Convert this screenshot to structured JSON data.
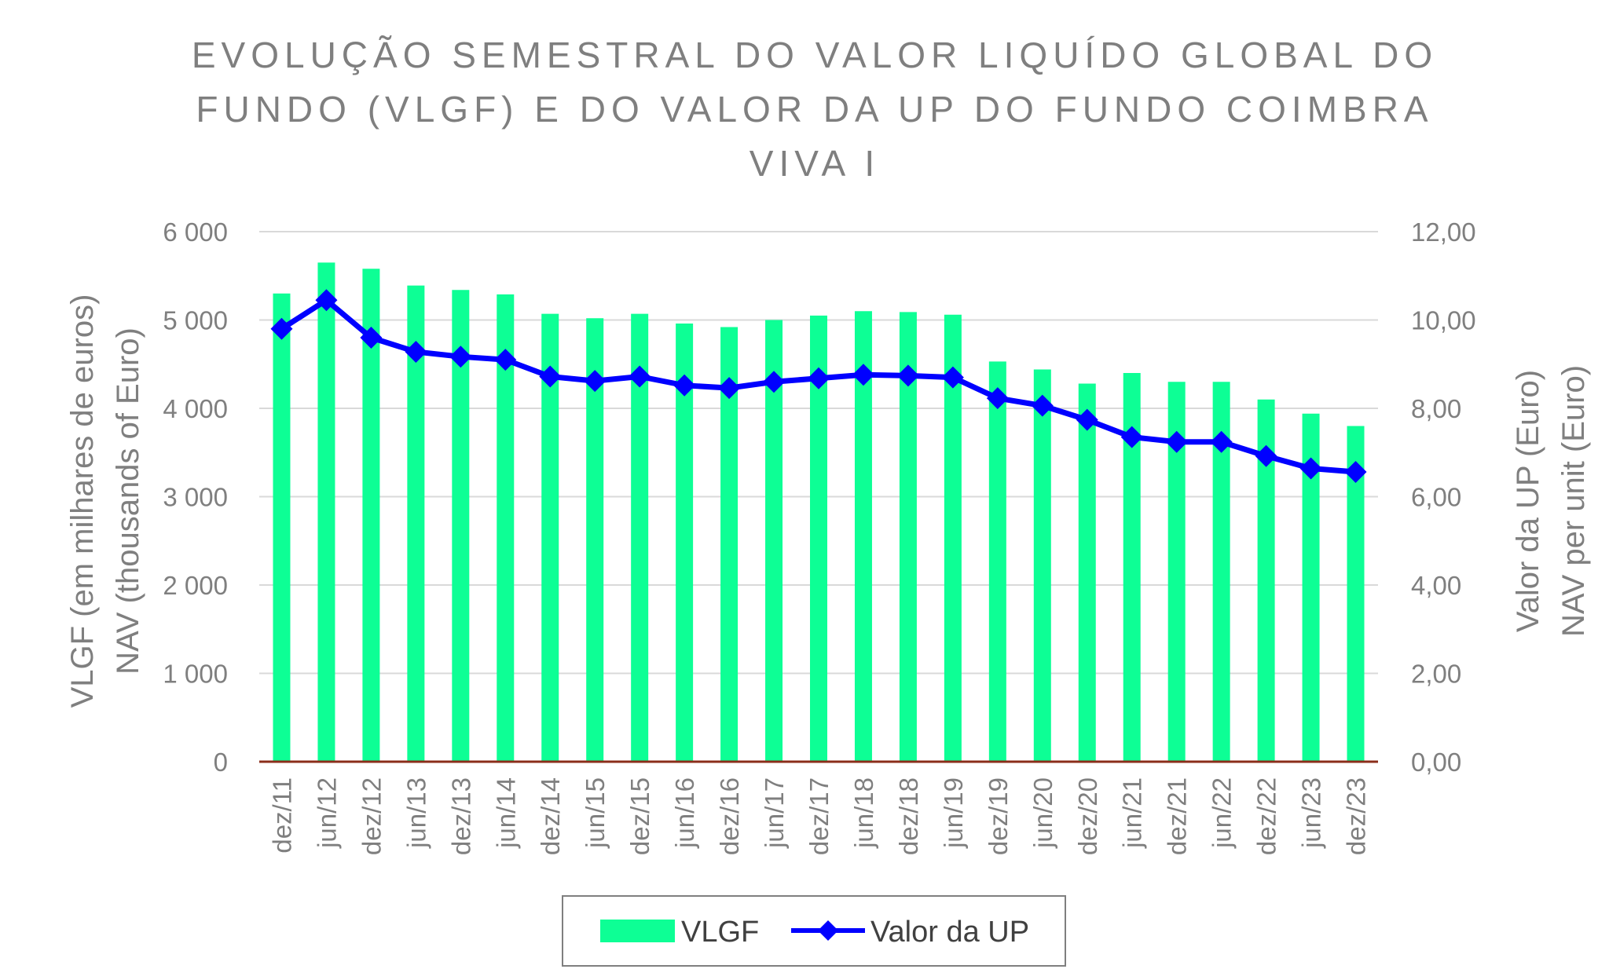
{
  "chart_data": {
    "type": "bar",
    "title_lines": [
      "EVOLUÇÃO SEMESTRAL DO VALOR LIQUÍDO GLOBAL DO",
      "FUNDO (VLGF) E DO VALOR DA UP DO FUNDO COIMBRA",
      "VIVA I"
    ],
    "categories": [
      "dez/11",
      "jun/12",
      "dez/12",
      "jun/13",
      "dez/13",
      "jun/14",
      "dez/14",
      "jun/15",
      "dez/15",
      "jun/16",
      "dez/16",
      "jun/17",
      "dez/17",
      "jun/18",
      "dez/18",
      "jun/19",
      "dez/19",
      "jun/20",
      "dez/20",
      "jun/21",
      "dez/21",
      "jun/22",
      "dez/22",
      "jun/23",
      "dez/23"
    ],
    "series": [
      {
        "name": "VLGF",
        "type": "bar",
        "axis": "left",
        "color": "#0dff95",
        "values": [
          5300,
          5650,
          5580,
          5390,
          5340,
          5290,
          5070,
          5020,
          5070,
          4960,
          4920,
          5000,
          5050,
          5100,
          5090,
          5060,
          4530,
          4440,
          4280,
          4400,
          4300,
          4300,
          4100,
          3940,
          3800
        ]
      },
      {
        "name": "Valor da UP",
        "type": "line",
        "axis": "right",
        "marker": "diamond",
        "color": "#0000ff",
        "values": [
          9.8,
          10.45,
          9.6,
          9.28,
          9.17,
          9.1,
          8.72,
          8.62,
          8.72,
          8.52,
          8.46,
          8.6,
          8.68,
          8.76,
          8.74,
          8.7,
          8.23,
          8.06,
          7.74,
          7.35,
          7.24,
          7.24,
          6.92,
          6.64,
          6.56
        ]
      }
    ],
    "y_left": {
      "label_lines": [
        "VLGF (em milhares de euros)",
        "NAV (thousands of Euro)"
      ],
      "ylim": [
        0,
        6000
      ],
      "ticks": [
        "0",
        "1 000",
        "2 000",
        "3 000",
        "4 000",
        "5 000",
        "6 000"
      ]
    },
    "y_right": {
      "label_lines": [
        "Valor da UP (Euro)",
        "NAV per unit (Euro)"
      ],
      "ylim": [
        0,
        12
      ],
      "ticks": [
        "0,00",
        "2,00",
        "4,00",
        "6,00",
        "8,00",
        "10,00",
        "12,00"
      ]
    },
    "grid": true,
    "legend_position": "bottom",
    "legend": [
      "VLGF",
      "Valor da UP"
    ]
  }
}
